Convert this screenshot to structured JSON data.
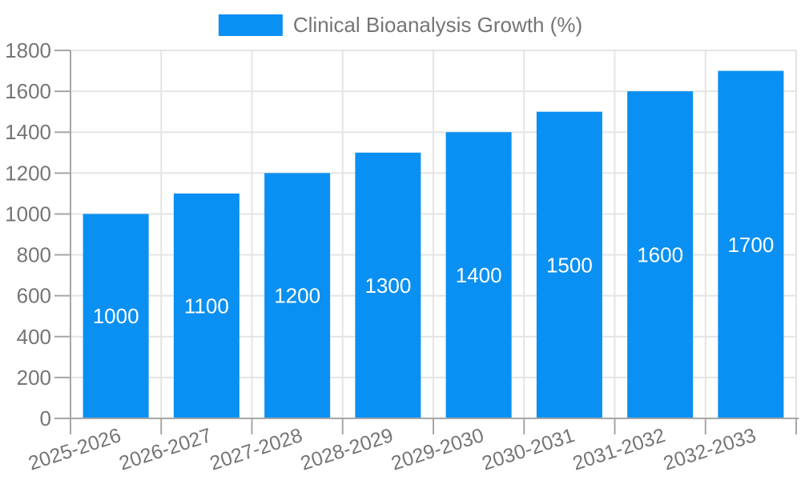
{
  "legend": {
    "label": "Clinical Bioanalysis Growth (%)"
  },
  "chart_data": {
    "type": "bar",
    "title": "",
    "series": [
      {
        "name": "Clinical Bioanalysis Growth (%)",
        "values": [
          1000,
          1100,
          1200,
          1300,
          1400,
          1500,
          1600,
          1700
        ]
      }
    ],
    "categories": [
      "2025-2026",
      "2026-2027",
      "2027-2028",
      "2028-2029",
      "2029-2030",
      "2030-2031",
      "2031-2032",
      "2032-2033"
    ],
    "bar_value_labels": [
      "1000",
      "1100",
      "1200",
      "1300",
      "1400",
      "1500",
      "1600",
      "1700"
    ],
    "y_tick_labels": [
      "0",
      "200",
      "400",
      "600",
      "800",
      "1000",
      "1200",
      "1400",
      "1600",
      "1800"
    ],
    "xlabel": "",
    "ylabel": "",
    "ylim": [
      0,
      1800
    ],
    "ytick_step": 200,
    "grid": true,
    "legend_position": "top-center",
    "colors": {
      "bar": "#0A90F2",
      "grid": "#E4E4E4",
      "axis": "#A6A6A6",
      "tick_label": "#757575",
      "bar_label": "#FFFFFF",
      "background": "#FFFFFF"
    }
  }
}
